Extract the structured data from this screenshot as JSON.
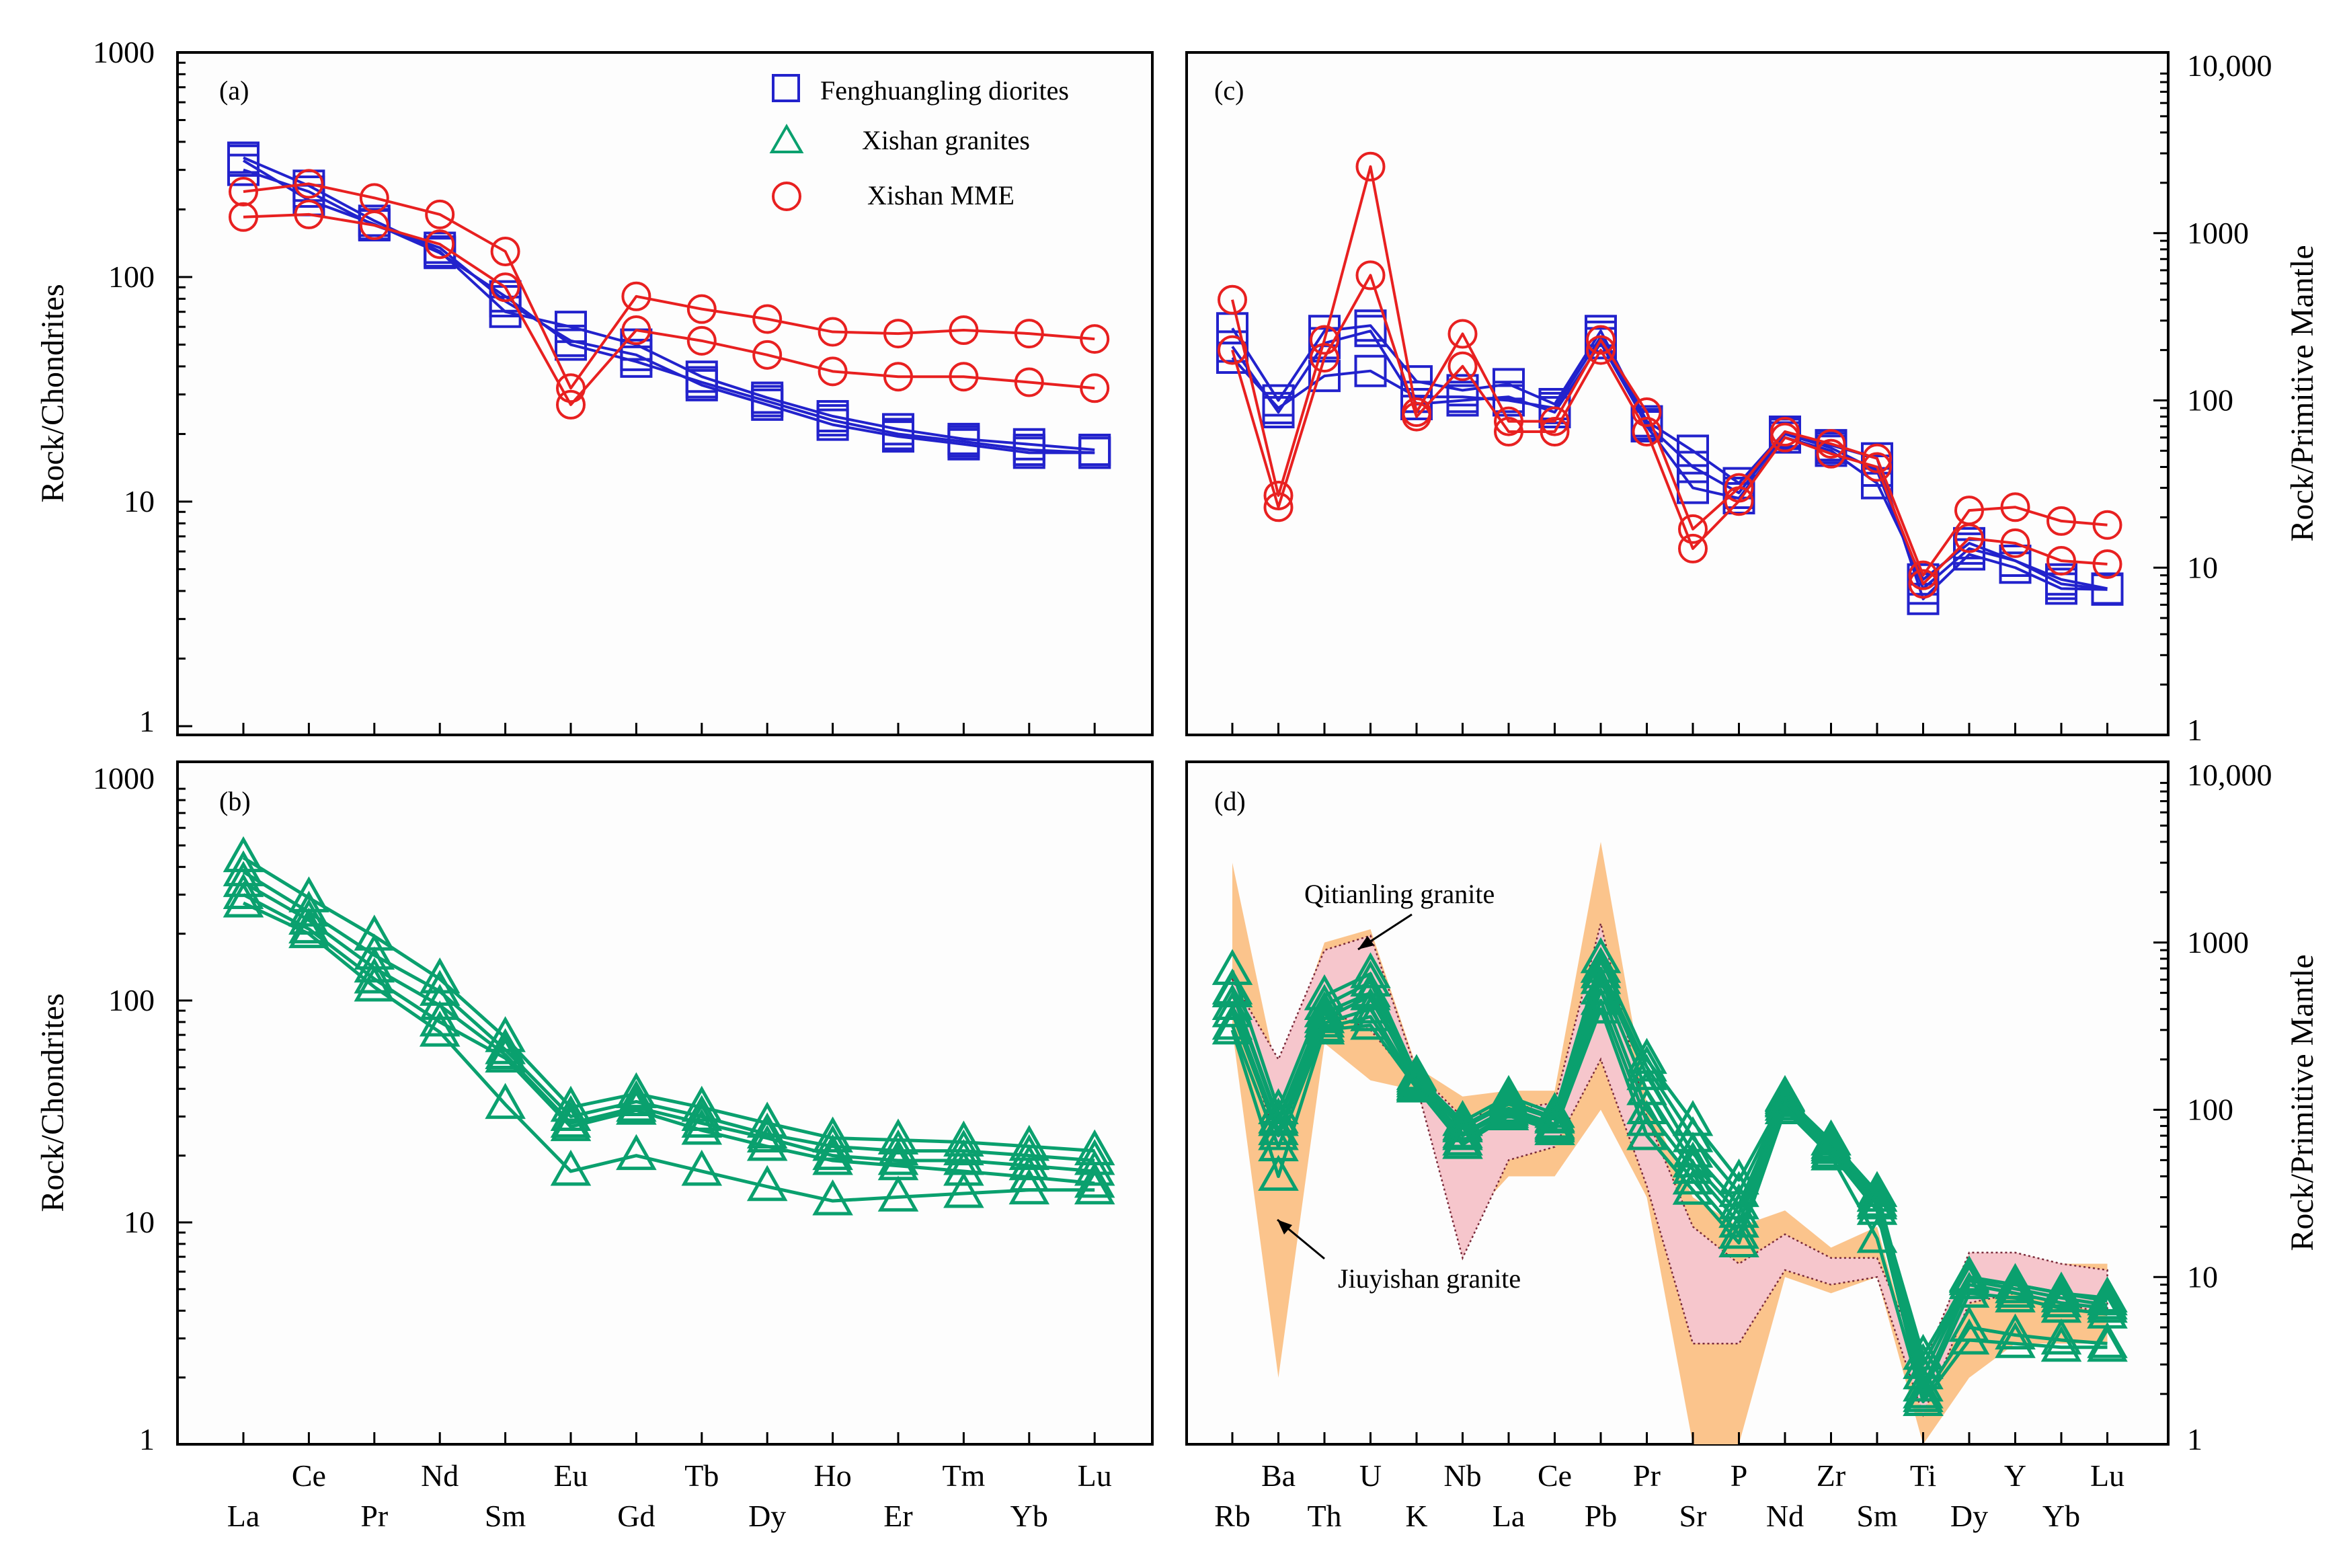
{
  "colors": {
    "fenghuangling": "#2222cc",
    "xishan_granite": "#0aa06e",
    "xishan_mme": "#e82020",
    "jiuyishan_fill": "#fbc48c",
    "qitianling_fill": "#f6c6cc",
    "qitianling_outline": "#7a2a3a"
  },
  "chart_data": [
    {
      "panel": "(a)",
      "type": "line",
      "yscale": "log",
      "ylim": [
        1,
        1000
      ],
      "ylabel": "Rock/Chondrites",
      "y_axis_side": "left",
      "yticks": [
        "1",
        "10",
        "100",
        "1000"
      ],
      "categories": [
        "La",
        "Ce",
        "Pr",
        "Nd",
        "Sm",
        "Eu",
        "Gd",
        "Tb",
        "Dy",
        "Ho",
        "Er",
        "Tm",
        "Yb",
        "Lu"
      ],
      "legend": {
        "placement": "top-right",
        "entries": [
          {
            "label": "Fenghuangling diorites",
            "marker": "square",
            "color": "#2222cc"
          },
          {
            "label": "Xishan granites",
            "marker": "triangle",
            "color": "#0aa06e"
          },
          {
            "label": "Xishan MME",
            "marker": "circle",
            "color": "#e82020"
          }
        ]
      },
      "series": [
        {
          "group": "Fenghuangling diorites",
          "marker": "square",
          "color": "#2222cc",
          "values": [
            340,
            255,
            178,
            130,
            70,
            60,
            50,
            36,
            29,
            24,
            21,
            19,
            18,
            17
          ]
        },
        {
          "group": "Fenghuangling diorites",
          "marker": "square",
          "color": "#2222cc",
          "values": [
            300,
            240,
            170,
            135,
            78,
            52,
            45,
            33,
            27,
            22,
            19.5,
            18,
            16.5,
            16.5
          ]
        },
        {
          "group": "Fenghuangling diorites",
          "marker": "square",
          "color": "#2222cc",
          "values": [
            330,
            220,
            172,
            128,
            82,
            50,
            42,
            34,
            28,
            23,
            20,
            18.5,
            17,
            16.5
          ]
        },
        {
          "group": "Xishan MME",
          "marker": "circle",
          "color": "#e82020",
          "values": [
            240,
            260,
            225,
            190,
            130,
            32,
            82,
            72,
            65,
            57,
            56,
            58,
            56,
            53
          ]
        },
        {
          "group": "Xishan MME",
          "marker": "circle",
          "color": "#e82020",
          "values": [
            185,
            190,
            170,
            140,
            90,
            27,
            58,
            52,
            45,
            38,
            36,
            36,
            34,
            32
          ]
        }
      ]
    },
    {
      "panel": "(b)",
      "type": "line",
      "yscale": "log",
      "ylim": [
        1,
        1000
      ],
      "ylabel": "Rock/Chondrites",
      "y_axis_side": "left",
      "yticks": [
        "1",
        "10",
        "100",
        "1000"
      ],
      "categories": [
        "La",
        "Ce",
        "Pr",
        "Nd",
        "Sm",
        "Eu",
        "Gd",
        "Tb",
        "Dy",
        "Ho",
        "Er",
        "Tm",
        "Yb",
        "Lu"
      ],
      "series": [
        {
          "group": "Xishan granites",
          "marker": "triangle",
          "color": "#0aa06e",
          "values": [
            440,
            290,
            195,
            125,
            68,
            33,
            38,
            33,
            28,
            24,
            23.5,
            23,
            22,
            21
          ]
        },
        {
          "group": "Xishan granites",
          "marker": "triangle",
          "color": "#0aa06e",
          "values": [
            380,
            250,
            160,
            110,
            60,
            30,
            35,
            30,
            25,
            22,
            21,
            21,
            20,
            19
          ]
        },
        {
          "group": "Xishan granites",
          "marker": "triangle",
          "color": "#0aa06e",
          "values": [
            340,
            230,
            140,
            95,
            57,
            28,
            33,
            28,
            24,
            20,
            19,
            19,
            18,
            17
          ]
        },
        {
          "group": "Xishan granites",
          "marker": "triangle",
          "color": "#0aa06e",
          "values": [
            300,
            210,
            125,
            80,
            55,
            27,
            32,
            26,
            22,
            19,
            18,
            17,
            16,
            15
          ]
        },
        {
          "group": "Xishan granites",
          "marker": "triangle",
          "color": "#0aa06e",
          "values": [
            275,
            200,
            115,
            72,
            34,
            17,
            20,
            17,
            14.5,
            12.5,
            13,
            13.5,
            14,
            14
          ]
        }
      ]
    },
    {
      "panel": "(c)",
      "type": "line",
      "yscale": "log",
      "ylim": [
        1,
        10000
      ],
      "ylabel": "Rock/Primitive Mantle",
      "y_axis_side": "right",
      "yticks": [
        "1",
        "10",
        "100",
        "1000",
        "10,000"
      ],
      "categories": [
        "Rb",
        "Ba",
        "Th",
        "U",
        "K",
        "Nb",
        "La",
        "Ce",
        "Pb",
        "Pr",
        "Sr",
        "P",
        "Nd",
        "Zr",
        "Sm",
        "Ti",
        "Dy",
        "Y",
        "Yb",
        "Lu"
      ],
      "series": [
        {
          "group": "Fenghuangling diorites",
          "marker": "square",
          "color": "#2222cc",
          "values": [
            270,
            100,
            260,
            280,
            130,
            115,
            125,
            95,
            260,
            75,
            50,
            32,
            65,
            54,
            45,
            6.5,
            12,
            10,
            7.5,
            7.4
          ]
        },
        {
          "group": "Fenghuangling diorites",
          "marker": "square",
          "color": "#2222cc",
          "values": [
            180,
            90,
            140,
            150,
            105,
            105,
            100,
            90,
            240,
            70,
            30,
            26,
            60,
            50,
            32,
            8.5,
            14,
            11,
            8.5,
            7.5
          ]
        },
        {
          "group": "Fenghuangling diorites",
          "marker": "square",
          "color": "#2222cc",
          "values": [
            210,
            85,
            220,
            260,
            95,
            100,
            105,
            85,
            220,
            72,
            40,
            28,
            63,
            52,
            38,
            7.5,
            13,
            11,
            8,
            7.4
          ]
        },
        {
          "group": "Xishan MME",
          "marker": "circle",
          "color": "#e82020",
          "values": [
            400,
            27,
            230,
            2500,
            85,
            250,
            75,
            75,
            230,
            85,
            17,
            30,
            65,
            55,
            45,
            9,
            22,
            23,
            19,
            18
          ]
        },
        {
          "group": "Xishan MME",
          "marker": "circle",
          "color": "#e82020",
          "values": [
            200,
            23,
            180,
            560,
            80,
            160,
            65,
            65,
            200,
            65,
            13,
            25,
            60,
            48,
            40,
            8,
            15,
            14,
            11,
            10.5
          ]
        }
      ]
    },
    {
      "panel": "(d)",
      "type": "line",
      "yscale": "log",
      "ylim": [
        1,
        10000
      ],
      "ylabel": "Rock/Primitive Mantle",
      "y_axis_side": "right",
      "yticks": [
        "1",
        "10",
        "100",
        "1000",
        "10,000"
      ],
      "categories": [
        "Rb",
        "Ba",
        "Th",
        "U",
        "K",
        "Nb",
        "La",
        "Ce",
        "Pb",
        "Pr",
        "Sr",
        "P",
        "Nd",
        "Zr",
        "Sm",
        "Ti",
        "Dy",
        "Y",
        "Yb",
        "Lu"
      ],
      "annotations": [
        {
          "text": "Qitianling granite",
          "points_to": "Qitianling granite field"
        },
        {
          "text": "Jiuyishan granite",
          "points_to": "Jiuyishan granite field"
        }
      ],
      "fields": [
        {
          "name": "Jiuyishan granite",
          "color": "#fbc48c",
          "upper": [
            3000,
            150,
            1000,
            1200,
            180,
            120,
            130,
            130,
            4000,
            110,
            30,
            20,
            25,
            15,
            20,
            2,
            13,
            14,
            12,
            12
          ],
          "lower": [
            300,
            2.5,
            250,
            150,
            130,
            20,
            40,
            40,
            100,
            30,
            1,
            1,
            10,
            8,
            10,
            1,
            2.5,
            4,
            4,
            4
          ]
        },
        {
          "name": "Qitianling granite",
          "color": "#f6c6cc",
          "upper": [
            600,
            200,
            900,
            1100,
            170,
            90,
            100,
            110,
            1300,
            90,
            20,
            12,
            18,
            13,
            13,
            3,
            14,
            14,
            12,
            11
          ],
          "lower": [
            450,
            60,
            400,
            300,
            140,
            13,
            50,
            60,
            200,
            35,
            4,
            4,
            11,
            9,
            10,
            1.5,
            7,
            8,
            7,
            6
          ]
        }
      ],
      "series": [
        {
          "group": "Xishan granites",
          "marker": "triangle",
          "color": "#0aa06e",
          "values": [
            680,
            100,
            480,
            650,
            160,
            85,
            120,
            95,
            800,
            200,
            85,
            38,
            120,
            65,
            30,
            3.4,
            10,
            9,
            8,
            7.5
          ]
        },
        {
          "group": "Xishan granites",
          "marker": "triangle",
          "color": "#0aa06e",
          "values": [
            520,
            88,
            420,
            580,
            155,
            80,
            112,
            90,
            700,
            180,
            68,
            32,
            118,
            65,
            32,
            3,
            9.8,
            9,
            8,
            7.2
          ]
        },
        {
          "group": "Xishan granites",
          "marker": "triangle",
          "color": "#0aa06e",
          "values": [
            500,
            85,
            380,
            500,
            150,
            78,
            108,
            88,
            650,
            160,
            55,
            27,
            115,
            62,
            30,
            2.6,
            9.5,
            8.5,
            7.5,
            6.8
          ]
        },
        {
          "group": "Xishan granites",
          "marker": "triangle",
          "color": "#0aa06e",
          "values": [
            420,
            75,
            350,
            480,
            145,
            72,
            102,
            82,
            600,
            130,
            48,
            24,
            112,
            60,
            28,
            2.2,
            9,
            8,
            7,
            6.5
          ]
        },
        {
          "group": "Xishan granites",
          "marker": "triangle",
          "color": "#0aa06e",
          "values": [
            380,
            70,
            330,
            400,
            140,
            70,
            98,
            80,
            520,
            100,
            44,
            21,
            110,
            58,
            27,
            2,
            8,
            7.5,
            6.5,
            6
          ]
        },
        {
          "group": "Xishan granites",
          "marker": "triangle",
          "color": "#0aa06e",
          "values": [
            320,
            60,
            310,
            360,
            138,
            65,
            95,
            78,
            450,
            85,
            38,
            18,
            105,
            55,
            25,
            1.9,
            5,
            4.5,
            4.2,
            4
          ]
        },
        {
          "group": "Xishan granites",
          "marker": "triangle",
          "color": "#0aa06e",
          "values": [
            300,
            40,
            300,
            320,
            135,
            62,
            92,
            75,
            400,
            70,
            33,
            16,
            100,
            53,
            17,
            1.8,
            4.2,
            4,
            3.8,
            3.8
          ]
        }
      ]
    }
  ]
}
